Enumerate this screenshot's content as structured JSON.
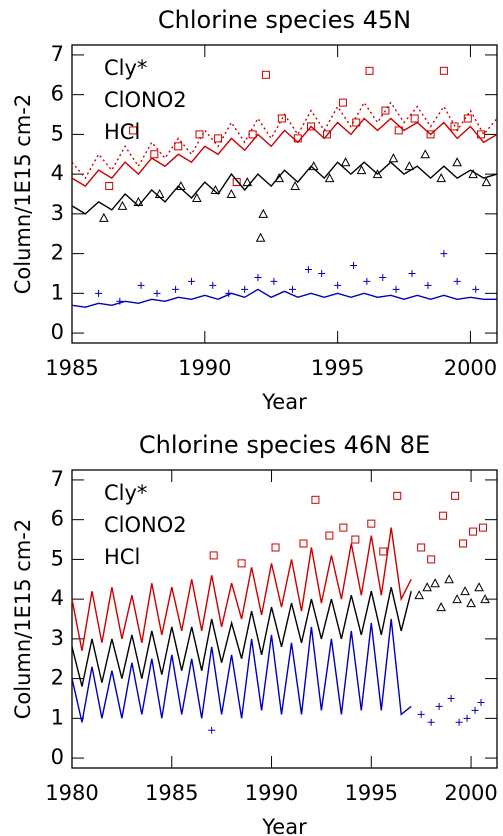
{
  "chart_data": [
    {
      "type": "line",
      "title": "Chlorine species 45N",
      "xlabel": "Year",
      "ylabel": "Column/1E15 cm-2",
      "xlim": [
        1985,
        2001
      ],
      "ylim": [
        -0.25,
        7.25
      ],
      "xticks": [
        1985,
        1990,
        1995,
        2000
      ],
      "yticks": [
        0,
        1,
        2,
        3,
        4,
        5,
        6,
        7
      ],
      "series": [
        {
          "name": "Cly*",
          "color": "#cc0000",
          "marker": "square",
          "line": {
            "x": [
              1985,
              1985.5,
              1986,
              1986.5,
              1987,
              1987.5,
              1988,
              1988.5,
              1989,
              1989.5,
              1990,
              1990.5,
              1991,
              1991.5,
              1992,
              1992.5,
              1993,
              1993.5,
              1994,
              1994.5,
              1995,
              1995.5,
              1996,
              1996.5,
              1997,
              1997.5,
              1998,
              1998.5,
              1999,
              1999.5,
              2000,
              2000.5,
              2001
            ],
            "values": [
              3.9,
              3.7,
              4.1,
              3.9,
              4.3,
              4.0,
              4.4,
              4.2,
              4.5,
              4.3,
              4.7,
              4.5,
              4.9,
              4.6,
              5.0,
              4.7,
              5.1,
              4.8,
              5.2,
              4.9,
              5.3,
              5.0,
              5.4,
              5.1,
              5.4,
              5.1,
              5.3,
              5.0,
              5.3,
              4.9,
              5.2,
              4.8,
              5.0
            ]
          },
          "dotted": {
            "x": [
              1985,
              1985.5,
              1986,
              1986.5,
              1987,
              1987.5,
              1988,
              1988.5,
              1989,
              1989.5,
              1990,
              1990.5,
              1991,
              1991.5,
              1992,
              1992.5,
              1993,
              1993.5,
              1994,
              1994.5,
              1995,
              1995.5,
              1996,
              1996.5,
              1997,
              1997.5,
              1998,
              1998.5,
              1999,
              1999.5,
              2000,
              2000.5,
              2001
            ],
            "values": [
              4.3,
              3.9,
              4.5,
              4.1,
              4.7,
              4.2,
              4.8,
              4.4,
              4.9,
              4.5,
              5.1,
              4.7,
              5.3,
              4.8,
              5.4,
              4.9,
              5.5,
              5.0,
              5.6,
              5.1,
              5.7,
              5.2,
              5.8,
              5.3,
              5.8,
              5.3,
              5.7,
              5.2,
              5.7,
              5.1,
              5.6,
              5.0,
              5.4
            ]
          },
          "points": {
            "x": [
              1986.4,
              1987.3,
              1988.1,
              1989.0,
              1989.8,
              1990.5,
              1991.2,
              1991.8,
              1992.3,
              1992.9,
              1993.5,
              1994.0,
              1994.6,
              1995.2,
              1995.7,
              1996.2,
              1996.8,
              1997.3,
              1997.9,
              1998.5,
              1999.0,
              1999.4,
              1999.9,
              2000.4
            ],
            "values": [
              3.7,
              5.1,
              4.5,
              4.7,
              5.0,
              4.9,
              3.8,
              5.0,
              6.5,
              5.4,
              4.9,
              5.2,
              5.0,
              5.8,
              5.3,
              6.6,
              5.6,
              5.1,
              5.4,
              5.0,
              6.6,
              5.2,
              5.4,
              5.0
            ]
          }
        },
        {
          "name": "ClONO2",
          "color": "#0000bb",
          "marker": "plus",
          "line": {
            "x": [
              1985,
              1985.5,
              1986,
              1986.5,
              1987,
              1987.5,
              1988,
              1988.5,
              1989,
              1989.5,
              1990,
              1990.5,
              1991,
              1991.5,
              1992,
              1992.5,
              1993,
              1993.5,
              1994,
              1994.5,
              1995,
              1995.5,
              1996,
              1996.5,
              1997,
              1997.5,
              1998,
              1998.5,
              1999,
              1999.5,
              2000,
              2000.5,
              2001
            ],
            "values": [
              0.7,
              0.65,
              0.75,
              0.7,
              0.8,
              0.75,
              0.85,
              0.8,
              0.9,
              0.85,
              0.95,
              0.85,
              1.0,
              0.9,
              1.1,
              0.9,
              1.05,
              0.9,
              1.0,
              0.9,
              1.0,
              0.9,
              1.0,
              0.9,
              0.95,
              0.85,
              0.95,
              0.85,
              0.95,
              0.85,
              0.9,
              0.85,
              0.85
            ]
          },
          "points": {
            "x": [
              1986.0,
              1986.8,
              1987.6,
              1988.2,
              1988.9,
              1989.5,
              1990.3,
              1990.9,
              1991.5,
              1992.0,
              1992.6,
              1993.3,
              1993.9,
              1994.4,
              1995.0,
              1995.6,
              1996.1,
              1996.7,
              1997.2,
              1997.8,
              1998.4,
              1999.0,
              1999.5,
              2000.2
            ],
            "values": [
              1.0,
              0.8,
              1.2,
              1.0,
              1.1,
              1.3,
              1.2,
              1.0,
              1.1,
              1.4,
              1.3,
              1.1,
              1.6,
              1.5,
              1.2,
              1.7,
              1.3,
              1.4,
              1.1,
              1.5,
              1.2,
              2.0,
              1.3,
              1.1
            ]
          }
        },
        {
          "name": "HCl",
          "color": "#000000",
          "marker": "triangle",
          "line": {
            "x": [
              1985,
              1985.5,
              1986,
              1986.5,
              1987,
              1987.5,
              1988,
              1988.5,
              1989,
              1989.5,
              1990,
              1990.5,
              1991,
              1991.5,
              1992,
              1992.5,
              1993,
              1993.5,
              1994,
              1994.5,
              1995,
              1995.5,
              1996,
              1996.5,
              1997,
              1997.5,
              1998,
              1998.5,
              1999,
              1999.5,
              2000,
              2000.5,
              2001
            ],
            "values": [
              3.2,
              3.0,
              3.3,
              3.1,
              3.5,
              3.2,
              3.6,
              3.3,
              3.7,
              3.4,
              3.8,
              3.5,
              4.0,
              3.6,
              4.0,
              3.7,
              4.1,
              3.8,
              4.2,
              3.9,
              4.3,
              4.0,
              4.3,
              4.0,
              4.3,
              4.0,
              4.2,
              3.9,
              4.2,
              3.9,
              4.1,
              3.9,
              4.0
            ]
          },
          "points": {
            "x": [
              1986.2,
              1986.9,
              1987.5,
              1988.3,
              1989.1,
              1989.7,
              1990.4,
              1991.0,
              1991.6,
              1992.1,
              1992.2,
              1992.8,
              1993.4,
              1994.1,
              1994.7,
              1995.3,
              1995.9,
              1996.5,
              1997.1,
              1997.7,
              1998.3,
              1998.9,
              1999.5,
              2000.1,
              2000.6
            ],
            "values": [
              2.9,
              3.2,
              3.3,
              3.5,
              3.7,
              3.4,
              3.6,
              3.5,
              3.8,
              2.4,
              3.0,
              3.9,
              3.7,
              4.2,
              3.9,
              4.3,
              4.1,
              4.0,
              4.4,
              4.2,
              4.5,
              3.9,
              4.3,
              4.0,
              3.8
            ]
          }
        }
      ]
    },
    {
      "type": "line",
      "title": "Chlorine species 46N 8E",
      "xlabel": "Year",
      "ylabel": "Column/1E15 cm-2",
      "xlim": [
        1980,
        2001.3
      ],
      "ylim": [
        -0.25,
        7.25
      ],
      "xticks": [
        1980,
        1985,
        1990,
        1995,
        2000
      ],
      "yticks": [
        0,
        1,
        2,
        3,
        4,
        5,
        6,
        7
      ],
      "series": [
        {
          "name": "Cly*",
          "color": "#cc0000",
          "marker": "square",
          "line": {
            "x": [
              1980,
              1980.5,
              1981,
              1981.5,
              1982,
              1982.5,
              1983,
              1983.5,
              1984,
              1984.5,
              1985,
              1985.5,
              1986,
              1986.5,
              1987,
              1987.5,
              1988,
              1988.5,
              1989,
              1989.5,
              1990,
              1990.5,
              1991,
              1991.5,
              1992,
              1992.5,
              1993,
              1993.5,
              1994,
              1994.5,
              1995,
              1995.5,
              1996,
              1996.5,
              1997
            ],
            "values": [
              4.0,
              2.7,
              4.2,
              2.9,
              4.3,
              3.0,
              4.1,
              2.9,
              4.4,
              3.1,
              4.3,
              3.2,
              4.5,
              3.2,
              4.6,
              3.3,
              4.4,
              3.5,
              4.8,
              3.6,
              4.9,
              3.8,
              5.0,
              3.7,
              5.3,
              3.9,
              5.1,
              4.0,
              5.4,
              4.1,
              5.6,
              4.1,
              5.8,
              4.0,
              4.5
            ]
          },
          "points": {
            "x": [
              1987.1,
              1988.5,
              1990.2,
              1991.6,
              1992.2,
              1992.9,
              1993.6,
              1994.2,
              1995.0,
              1995.6,
              1996.3,
              1997.5,
              1998.0,
              1998.6,
              1999.2,
              1999.6,
              2000.1,
              2000.6
            ],
            "values": [
              5.1,
              4.9,
              5.3,
              5.4,
              6.5,
              5.6,
              5.8,
              5.5,
              5.9,
              5.2,
              6.6,
              5.3,
              5.0,
              6.1,
              6.6,
              5.4,
              5.7,
              5.8
            ]
          }
        },
        {
          "name": "ClONO2",
          "color": "#0000bb",
          "marker": "plus",
          "line": {
            "x": [
              1980,
              1980.5,
              1981,
              1981.5,
              1982,
              1982.5,
              1983,
              1983.5,
              1984,
              1984.5,
              1985,
              1985.5,
              1986,
              1986.5,
              1987,
              1987.5,
              1988,
              1988.5,
              1989,
              1989.5,
              1990,
              1990.5,
              1991,
              1991.5,
              1992,
              1992.5,
              1993,
              1993.5,
              1994,
              1994.5,
              1995,
              1995.5,
              1996,
              1996.5,
              1997
            ],
            "values": [
              2.0,
              0.9,
              2.3,
              1.0,
              2.2,
              1.0,
              2.4,
              1.1,
              2.5,
              1.0,
              2.6,
              1.1,
              2.5,
              1.0,
              2.8,
              1.1,
              2.6,
              1.0,
              3.0,
              1.2,
              3.1,
              1.1,
              2.9,
              1.1,
              3.3,
              1.2,
              3.0,
              1.1,
              3.2,
              1.2,
              3.4,
              1.2,
              3.5,
              1.1,
              1.3
            ]
          },
          "points": {
            "x": [
              1997.5,
              1998.0,
              1998.4,
              1999.0,
              1999.4,
              1999.8,
              2000.2,
              2000.5,
              1987.0
            ],
            "values": [
              1.1,
              0.9,
              1.3,
              1.5,
              0.9,
              1.0,
              1.2,
              1.4,
              0.7
            ]
          }
        },
        {
          "name": "HCl",
          "color": "#000000",
          "marker": "triangle",
          "line": {
            "x": [
              1980,
              1980.5,
              1981,
              1981.5,
              1982,
              1982.5,
              1983,
              1983.5,
              1984,
              1984.5,
              1985,
              1985.5,
              1986,
              1986.5,
              1987,
              1987.5,
              1988,
              1988.5,
              1989,
              1989.5,
              1990,
              1990.5,
              1991,
              1991.5,
              1992,
              1992.5,
              1993,
              1993.5,
              1994,
              1994.5,
              1995,
              1995.5,
              1996,
              1996.5,
              1997
            ],
            "values": [
              2.8,
              1.8,
              3.0,
              1.9,
              3.0,
              2.0,
              3.1,
              2.0,
              3.2,
              2.1,
              3.3,
              2.2,
              3.3,
              2.2,
              3.5,
              2.4,
              3.4,
              2.5,
              3.7,
              2.6,
              3.8,
              2.8,
              3.9,
              2.9,
              4.0,
              3.0,
              4.0,
              3.0,
              4.1,
              3.1,
              4.2,
              3.1,
              4.3,
              3.2,
              4.2
            ]
          },
          "points": {
            "x": [
              1997.4,
              1997.8,
              1998.2,
              1998.5,
              1998.9,
              1999.3,
              1999.7,
              2000.0,
              2000.4,
              2000.7
            ],
            "values": [
              4.1,
              4.3,
              4.4,
              3.8,
              4.5,
              4.0,
              4.2,
              3.9,
              4.3,
              4.0
            ]
          }
        }
      ]
    }
  ]
}
